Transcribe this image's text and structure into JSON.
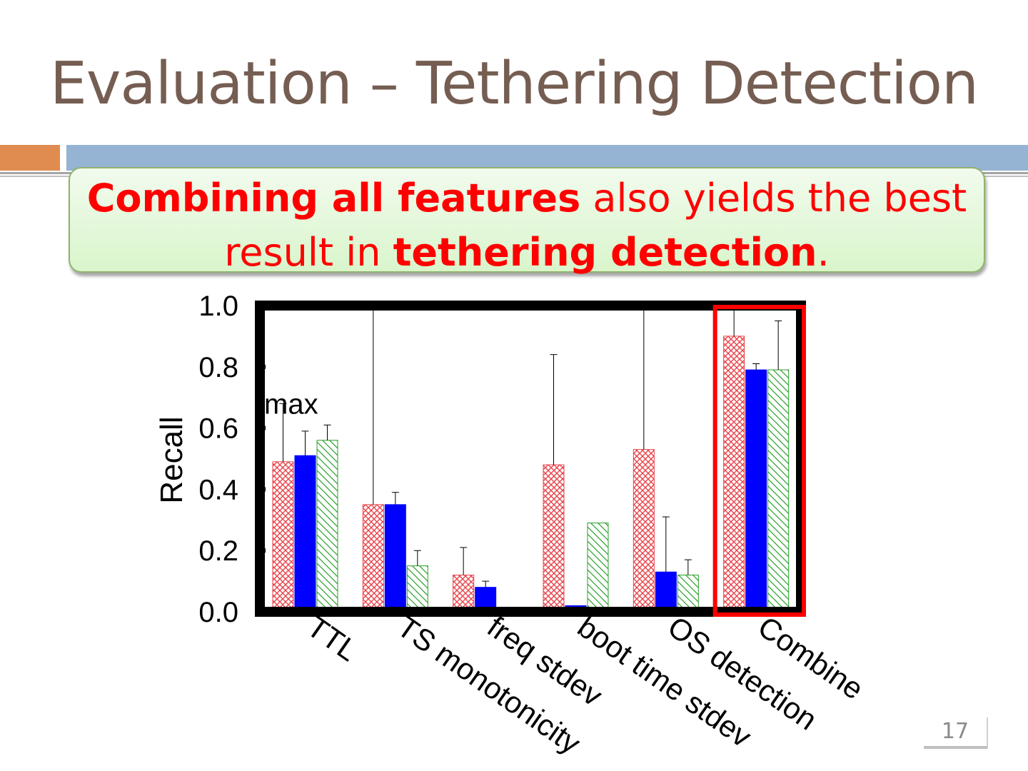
{
  "slide": {
    "title": "Evaluation – Tethering Detection",
    "callout": {
      "part1_bold": "Combining all features",
      "part2": " also yields the best result in ",
      "part3_bold": "tethering detection",
      "part4": "."
    },
    "page_number": "17"
  },
  "colors": {
    "title": "#755d52",
    "callout_text": "#ff0000",
    "series_red": "#e8434a",
    "series_blue": "#0000ff",
    "series_green": "#2aa02a",
    "highlight_box": "#ff0000"
  },
  "chart_data": {
    "type": "bar",
    "ylabel": "Recall",
    "ylim": [
      0,
      1.0
    ],
    "yticks": [
      "0.0",
      "0.2",
      "0.4",
      "0.6",
      "0.8",
      "1.0"
    ],
    "ytick_values": [
      0,
      0.2,
      0.4,
      0.6,
      0.8,
      1.0
    ],
    "categories": [
      "TTL",
      "TS monotonicity",
      "freq stdev",
      "boot time stdev",
      "OS detection",
      "Combine"
    ],
    "annotation": "max",
    "highlighted_category": "Combine",
    "series": [
      {
        "pattern": "crosshatch",
        "values": [
          0.49,
          0.35,
          0.12,
          0.48,
          0.53,
          0.9
        ],
        "err_high": [
          0.68,
          1.0,
          0.21,
          0.84,
          1.0,
          1.0
        ],
        "err_low": [
          0.49,
          0.35,
          0.12,
          0.48,
          0.53,
          0.9
        ]
      },
      {
        "pattern": "solid",
        "values": [
          0.51,
          0.35,
          0.08,
          0.02,
          0.13,
          0.79
        ],
        "err_high": [
          0.59,
          0.39,
          0.1,
          0.02,
          0.31,
          0.81
        ],
        "err_low": [
          0.51,
          0.35,
          0.08,
          0.02,
          0.13,
          0.79
        ]
      },
      {
        "pattern": "diagonal",
        "values": [
          0.56,
          0.15,
          0.0,
          0.29,
          0.12,
          0.79
        ],
        "err_high": [
          0.61,
          0.2,
          0.0,
          0.29,
          0.17,
          0.95
        ],
        "err_low": [
          0.56,
          0.15,
          0.0,
          0.29,
          0.12,
          0.79
        ]
      }
    ]
  }
}
